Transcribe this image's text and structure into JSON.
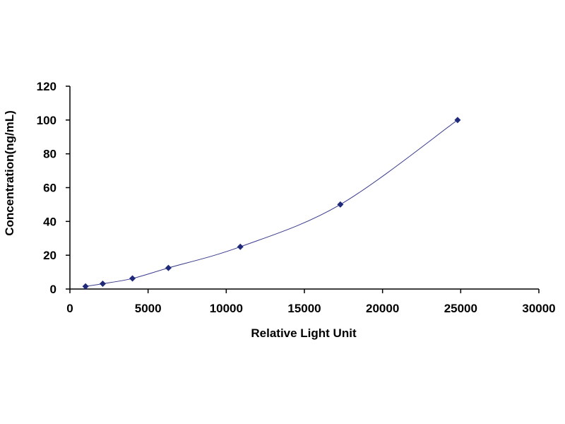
{
  "chart_data": {
    "type": "scatter",
    "title": "",
    "xlabel": "Relative Light Unit",
    "ylabel": "Concentration(ng/mL)",
    "xlim": [
      0,
      30000
    ],
    "ylim": [
      0,
      120
    ],
    "xticks": [
      0,
      5000,
      10000,
      15000,
      20000,
      25000,
      30000
    ],
    "yticks": [
      0,
      20,
      40,
      60,
      80,
      100,
      120
    ],
    "grid": false,
    "legend": "none",
    "line_color": "#3a3a8c",
    "marker_color": "#1f2a7a",
    "series": [
      {
        "x": [
          1000,
          2100,
          4000,
          6300,
          10900,
          17300,
          24800
        ],
        "y": [
          1.56,
          3.12,
          6.25,
          12.5,
          25,
          50,
          100
        ]
      }
    ]
  }
}
